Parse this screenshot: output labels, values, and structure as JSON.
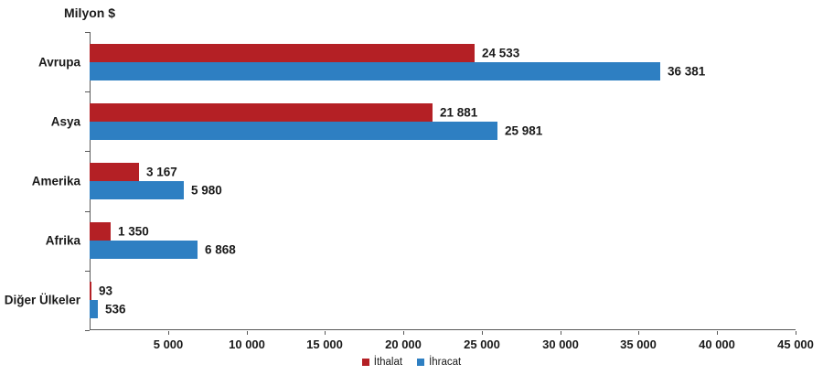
{
  "chart_data": {
    "type": "bar",
    "orientation": "horizontal",
    "title": "Milyon $",
    "categories": [
      "Avrupa",
      "Asya",
      "Amerika",
      "Afrika",
      "Diğer Ülkeler"
    ],
    "series": [
      {
        "name": "İthalat",
        "color": "#b42025",
        "values": [
          24533,
          21881,
          3167,
          1350,
          93
        ]
      },
      {
        "name": "İhracat",
        "color": "#2e7fc2",
        "values": [
          36381,
          25981,
          5980,
          6868,
          536
        ]
      }
    ],
    "value_labels": [
      [
        "24 533",
        "21 881",
        "3 167",
        "1 350",
        "93"
      ],
      [
        "36 381",
        "25 981",
        "5 980",
        "6 868",
        "536"
      ]
    ],
    "xlim": [
      0,
      45000
    ],
    "x_tick_step": 5000,
    "x_tick_labels": [
      "5 000",
      "10 000",
      "15 000",
      "20 000",
      "25 000",
      "30 000",
      "35 000",
      "40 000",
      "45 000"
    ],
    "grid": false,
    "legend_position": "bottom-center",
    "colors": {
      "axis": "#595959",
      "text": "#1a1a1a",
      "background": "#ffffff"
    }
  }
}
